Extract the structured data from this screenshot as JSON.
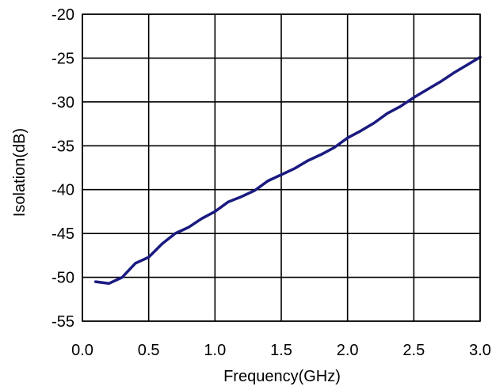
{
  "chart_data": {
    "type": "line",
    "title": "",
    "xlabel": "Frequency(GHz)",
    "ylabel": "Isolation(dB)",
    "xlim": [
      0.0,
      3.0
    ],
    "ylim": [
      -55,
      -20
    ],
    "x_ticks": [
      0.0,
      0.5,
      1.0,
      1.5,
      2.0,
      2.5,
      3.0
    ],
    "x_tick_labels": [
      "0.0",
      "0.5",
      "1.0",
      "1.5",
      "2.0",
      "2.5",
      "3.0"
    ],
    "y_ticks": [
      -20,
      -25,
      -30,
      -35,
      -40,
      -45,
      -50,
      -55
    ],
    "y_tick_labels": [
      "-20",
      "-25",
      "-30",
      "-35",
      "-40",
      "-45",
      "-50",
      "-55"
    ],
    "grid": true,
    "legend": "none",
    "series": [
      {
        "color": "#1a1a80",
        "x": [
          0.1,
          0.2,
          0.3,
          0.4,
          0.5,
          0.6,
          0.7,
          0.8,
          0.9,
          1.0,
          1.1,
          1.2,
          1.3,
          1.4,
          1.5,
          1.6,
          1.7,
          1.8,
          1.9,
          2.0,
          2.1,
          2.2,
          2.3,
          2.4,
          2.5,
          2.6,
          2.7,
          2.8,
          2.9,
          3.0
        ],
        "y": [
          -50.5,
          -50.7,
          -50.0,
          -48.4,
          -47.7,
          -46.2,
          -45.0,
          -44.3,
          -43.3,
          -42.5,
          -41.4,
          -40.8,
          -40.1,
          -39.0,
          -38.3,
          -37.6,
          -36.7,
          -36.0,
          -35.2,
          -34.1,
          -33.3,
          -32.4,
          -31.3,
          -30.5,
          -29.5,
          -28.6,
          -27.7,
          -26.7,
          -25.8,
          -24.9
        ]
      }
    ]
  }
}
